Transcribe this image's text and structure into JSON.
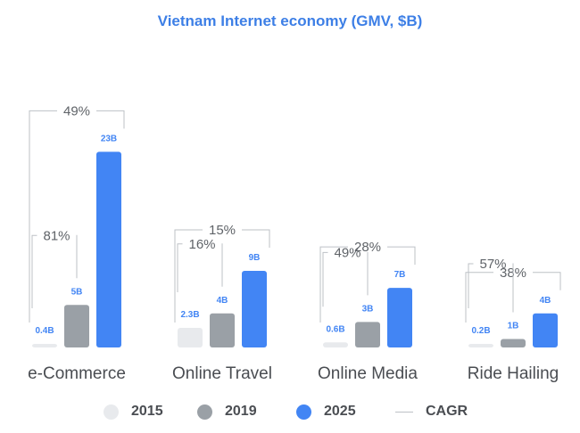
{
  "colors": {
    "y2015": "#e8eaed",
    "y2019": "#9aa0a6",
    "y2025": "#4285f4",
    "cagr_line": "#bdc1c6",
    "title": "#3d7fe6"
  },
  "legend": [
    {
      "label": "2015",
      "key": "y2015",
      "kind": "dot"
    },
    {
      "label": "2019",
      "key": "y2019",
      "kind": "dot"
    },
    {
      "label": "2025",
      "key": "y2025",
      "kind": "dot"
    },
    {
      "label": "CAGR",
      "key": "cagr_line",
      "kind": "line"
    }
  ],
  "chart_data": {
    "type": "bar",
    "title": "Vietnam Internet economy (GMV, $B)",
    "categories": [
      "e-Commerce",
      "Online Travel",
      "Online Media",
      "Ride Hailing"
    ],
    "series": [
      {
        "name": "2015",
        "values": [
          0.4,
          2.3,
          0.6,
          0.2
        ],
        "labels": [
          "0.4B",
          "2.3B",
          "0.6B",
          "0.2B"
        ]
      },
      {
        "name": "2019",
        "values": [
          5,
          4,
          3,
          1
        ],
        "labels": [
          "5B",
          "4B",
          "3B",
          "1B"
        ]
      },
      {
        "name": "2025",
        "values": [
          23,
          9,
          7,
          4
        ],
        "labels": [
          "23B",
          "9B",
          "7B",
          "4B"
        ]
      }
    ],
    "cagr_2015_2019": [
      "81%",
      "16%",
      "49%",
      "57%"
    ],
    "cagr_2015_2025": [
      "49%",
      "15%",
      "28%",
      "38%"
    ],
    "legend_position": "bottom"
  }
}
